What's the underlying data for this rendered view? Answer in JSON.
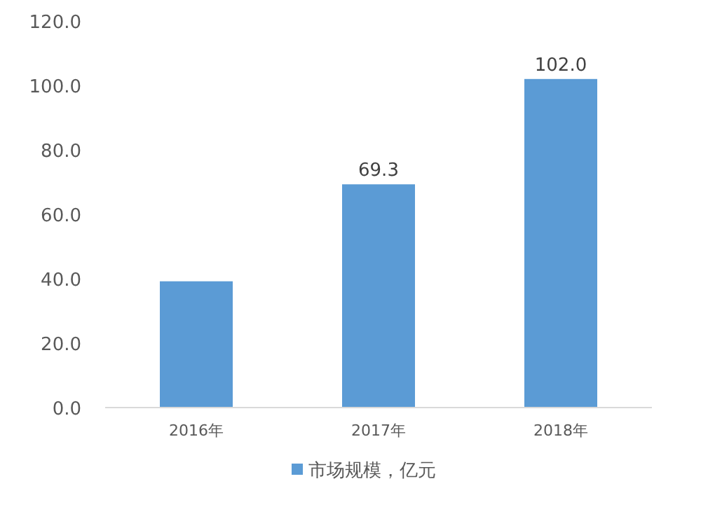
{
  "chart_data": {
    "type": "bar",
    "categories": [
      "2016年",
      "2017年",
      "2018年"
    ],
    "series": [
      {
        "name": "市场规模，亿元",
        "color": "#5b9bd5",
        "values": [
          39.2,
          69.3,
          102.0
        ],
        "value_labels": [
          null,
          "69.3",
          "102.0"
        ]
      }
    ],
    "ylim": [
      0,
      120
    ],
    "yticks": [
      {
        "value": 0,
        "label": "0.0"
      },
      {
        "value": 20,
        "label": "20.0"
      },
      {
        "value": 40,
        "label": "40.0"
      },
      {
        "value": 60,
        "label": "60.0"
      },
      {
        "value": 80,
        "label": "80.0"
      },
      {
        "value": 100,
        "label": "100.0"
      },
      {
        "value": 120,
        "label": "120.0"
      }
    ],
    "grid": false,
    "legend": "bottom"
  }
}
